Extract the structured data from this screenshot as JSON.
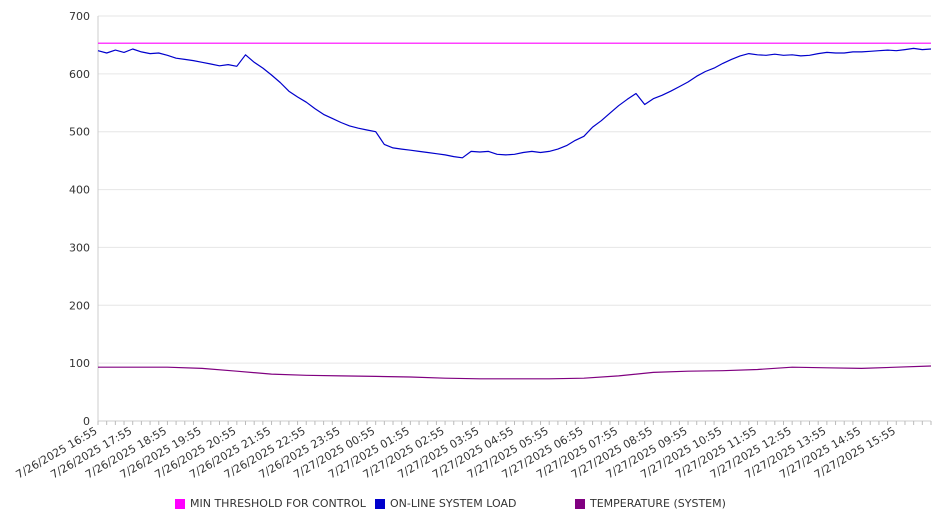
{
  "chart_data": {
    "type": "line",
    "title": "",
    "xlabel": "",
    "ylabel": "",
    "ylim": [
      0,
      700
    ],
    "y_ticks": [
      "0",
      "100",
      "200",
      "300",
      "400",
      "500",
      "600",
      "700"
    ],
    "x_ticks": [
      "7/26/2025 16:55",
      "7/26/2025 17:55",
      "7/26/2025 18:55",
      "7/26/2025 19:55",
      "7/26/2025 20:55",
      "7/26/2025 21:55",
      "7/26/2025 22:55",
      "7/26/2025 23:55",
      "7/27/2025 00:55",
      "7/27/2025 01:55",
      "7/27/2025 02:55",
      "7/27/2025 03:55",
      "7/27/2025 04:55",
      "7/27/2025 05:55",
      "7/27/2025 06:55",
      "7/27/2025 07:55",
      "7/27/2025 08:55",
      "7/27/2025 09:55",
      "7/27/2025 10:55",
      "7/27/2025 11:55",
      "7/27/2025 12:55",
      "7/27/2025 13:55",
      "7/27/2025 14:55",
      "7/27/2025 15:55"
    ],
    "grid": true,
    "legend_position": "bottom",
    "series": [
      {
        "name": "MIN THRESHOLD FOR CONTROL",
        "color": "#ff00ff",
        "x": [
          "7/26/2025 16:55",
          "7/27/2025 16:55"
        ],
        "y": [
          653,
          653
        ]
      },
      {
        "name": "ON-LINE SYSTEM LOAD",
        "color": "#0000cc",
        "x": [
          "7/26/2025 16:55",
          "7/26/2025 17:10",
          "7/26/2025 17:25",
          "7/26/2025 17:40",
          "7/26/2025 17:55",
          "7/26/2025 18:10",
          "7/26/2025 18:25",
          "7/26/2025 18:40",
          "7/26/2025 18:55",
          "7/26/2025 19:10",
          "7/26/2025 19:25",
          "7/26/2025 19:40",
          "7/26/2025 19:55",
          "7/26/2025 20:10",
          "7/26/2025 20:25",
          "7/26/2025 20:40",
          "7/26/2025 20:55",
          "7/26/2025 21:10",
          "7/26/2025 21:25",
          "7/26/2025 21:40",
          "7/26/2025 21:55",
          "7/26/2025 22:10",
          "7/26/2025 22:25",
          "7/26/2025 22:40",
          "7/26/2025 22:55",
          "7/26/2025 23:10",
          "7/26/2025 23:25",
          "7/26/2025 23:40",
          "7/26/2025 23:55",
          "7/27/2025 00:10",
          "7/27/2025 00:25",
          "7/27/2025 00:40",
          "7/27/2025 00:55",
          "7/27/2025 01:10",
          "7/27/2025 01:25",
          "7/27/2025 01:40",
          "7/27/2025 01:55",
          "7/27/2025 02:10",
          "7/27/2025 02:25",
          "7/27/2025 02:40",
          "7/27/2025 02:55",
          "7/27/2025 03:10",
          "7/27/2025 03:25",
          "7/27/2025 03:40",
          "7/27/2025 03:55",
          "7/27/2025 04:10",
          "7/27/2025 04:25",
          "7/27/2025 04:40",
          "7/27/2025 04:55",
          "7/27/2025 05:10",
          "7/27/2025 05:25",
          "7/27/2025 05:40",
          "7/27/2025 05:55",
          "7/27/2025 06:10",
          "7/27/2025 06:25",
          "7/27/2025 06:40",
          "7/27/2025 06:55",
          "7/27/2025 07:10",
          "7/27/2025 07:25",
          "7/27/2025 07:40",
          "7/27/2025 07:55",
          "7/27/2025 08:10",
          "7/27/2025 08:25",
          "7/27/2025 08:40",
          "7/27/2025 08:55",
          "7/27/2025 09:10",
          "7/27/2025 09:25",
          "7/27/2025 09:40",
          "7/27/2025 09:55",
          "7/27/2025 10:10",
          "7/27/2025 10:25",
          "7/27/2025 10:40",
          "7/27/2025 10:55",
          "7/27/2025 11:10",
          "7/27/2025 11:25",
          "7/27/2025 11:40",
          "7/27/2025 11:55",
          "7/27/2025 12:10",
          "7/27/2025 12:25",
          "7/27/2025 12:40",
          "7/27/2025 12:55",
          "7/27/2025 13:10",
          "7/27/2025 13:25",
          "7/27/2025 13:40",
          "7/27/2025 13:55",
          "7/27/2025 14:10",
          "7/27/2025 14:25",
          "7/27/2025 14:40",
          "7/27/2025 14:55",
          "7/27/2025 15:10",
          "7/27/2025 15:25",
          "7/27/2025 15:40",
          "7/27/2025 15:55",
          "7/27/2025 16:10",
          "7/27/2025 16:25",
          "7/27/2025 16:40",
          "7/27/2025 16:55"
        ],
        "y": [
          640,
          636,
          641,
          637,
          643,
          638,
          635,
          636,
          632,
          627,
          625,
          623,
          620,
          617,
          614,
          616,
          613,
          633,
          620,
          610,
          598,
          585,
          570,
          560,
          551,
          540,
          530,
          523,
          516,
          510,
          506,
          503,
          500,
          478,
          472,
          470,
          468,
          466,
          464,
          462,
          460,
          457,
          455,
          466,
          465,
          466,
          461,
          460,
          461,
          464,
          466,
          464,
          466,
          470,
          476,
          485,
          492,
          508,
          519,
          532,
          545,
          556,
          566,
          547,
          557,
          563,
          570,
          578,
          586,
          596,
          604,
          610,
          618,
          625,
          631,
          635,
          633,
          632,
          634,
          632,
          633,
          631,
          632,
          635,
          637,
          636,
          636,
          638,
          638,
          639,
          640,
          641,
          640,
          642,
          644,
          642,
          643
        ]
      },
      {
        "name": "TEMPERATURE (SYSTEM)",
        "color": "#800080",
        "x": [
          "7/26/2025 16:55",
          "7/26/2025 17:55",
          "7/26/2025 18:55",
          "7/26/2025 19:55",
          "7/26/2025 20:55",
          "7/26/2025 21:55",
          "7/26/2025 22:55",
          "7/26/2025 23:55",
          "7/27/2025 00:55",
          "7/27/2025 01:55",
          "7/27/2025 02:55",
          "7/27/2025 03:55",
          "7/27/2025 04:55",
          "7/27/2025 05:55",
          "7/27/2025 06:55",
          "7/27/2025 07:55",
          "7/27/2025 08:55",
          "7/27/2025 09:55",
          "7/27/2025 10:55",
          "7/27/2025 11:55",
          "7/27/2025 12:55",
          "7/27/2025 13:55",
          "7/27/2025 14:55",
          "7/27/2025 15:55",
          "7/27/2025 16:55"
        ],
        "y": [
          93,
          93,
          93,
          91,
          86,
          81,
          79,
          78,
          77,
          76,
          74,
          73,
          73,
          73,
          74,
          78,
          84,
          86,
          87,
          89,
          93,
          92,
          91,
          93,
          95
        ]
      }
    ]
  }
}
